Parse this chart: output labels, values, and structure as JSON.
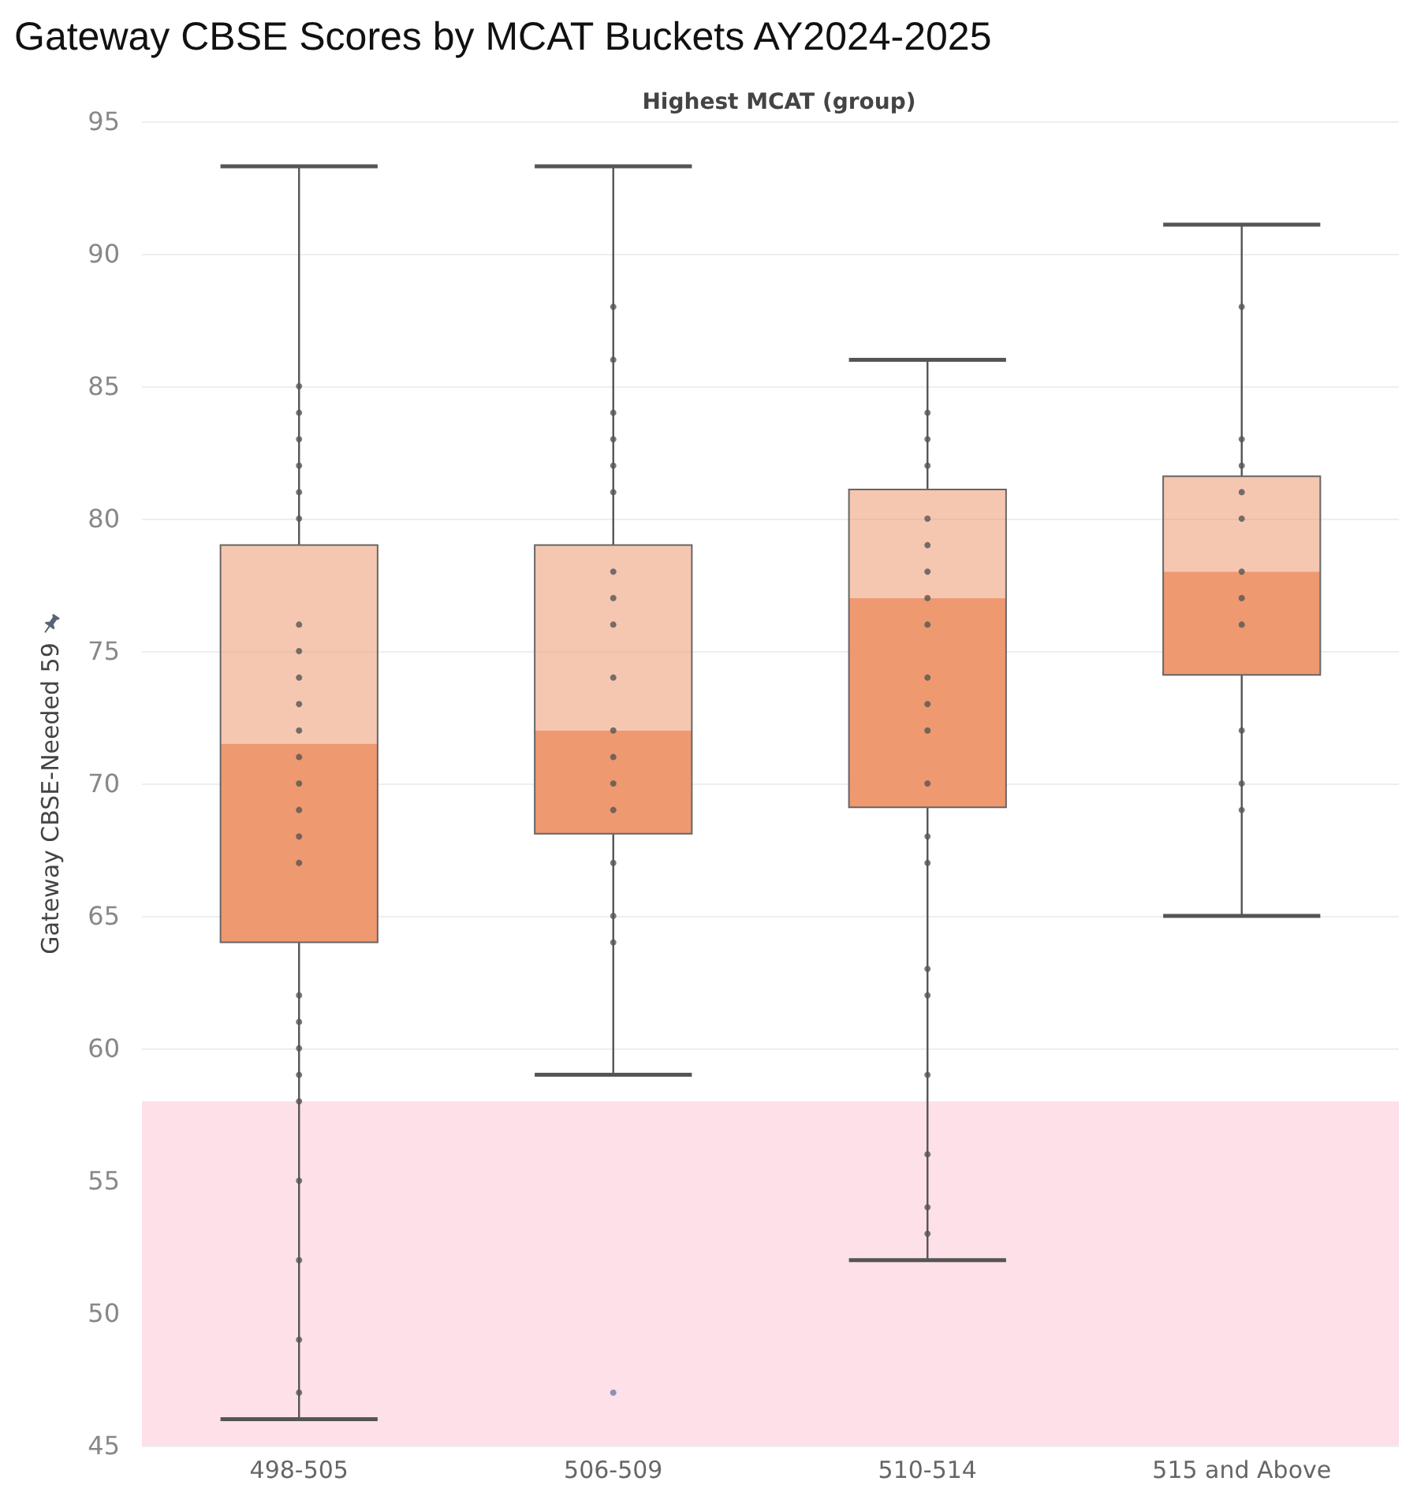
{
  "chart_data": {
    "type": "box",
    "title": "Gateway CBSE Scores by MCAT Buckets AY2024-2025",
    "xlabel": "Highest MCAT (group)",
    "ylabel": "Gateway CBSE-Needed 59",
    "categories": [
      "498-505",
      "506-509",
      "510-514",
      "515 and Above"
    ],
    "ylim": [
      45,
      95
    ],
    "yticks": [
      45,
      50,
      55,
      60,
      65,
      70,
      75,
      80,
      85,
      90,
      95
    ],
    "grid": "y",
    "bands": [
      {
        "axis": "y",
        "from": 45,
        "to": 58,
        "color": "#fde0e8"
      }
    ],
    "series": [
      {
        "color": "#ee9970",
        "boxes": [
          {
            "low": 46,
            "q1": 64,
            "median": 71.5,
            "q3": 79,
            "high": 93.3
          },
          {
            "low": 59,
            "q1": 68.1,
            "median": 72,
            "q3": 79,
            "high": 93.3,
            "outliers": [
              47
            ]
          },
          {
            "low": 52,
            "q1": 69.1,
            "median": 77,
            "q3": 81.1,
            "high": 86
          },
          {
            "low": 65,
            "q1": 74.1,
            "median": 78,
            "q3": 81.6,
            "high": 91.1
          }
        ]
      },
      {
        "type": "scatter",
        "color": "#555555",
        "marker": "circle",
        "x": [
          "498-505",
          "498-505",
          "498-505",
          "498-505",
          "498-505",
          "498-505",
          "498-505",
          "498-505",
          "498-505",
          "498-505",
          "498-505",
          "498-505",
          "498-505",
          "498-505",
          "498-505",
          "498-505",
          "498-505",
          "498-505",
          "498-505",
          "498-505",
          "498-505",
          "498-505",
          "498-505",
          "498-505",
          "498-505",
          "506-509",
          "506-509",
          "506-509",
          "506-509",
          "506-509",
          "506-509",
          "506-509",
          "506-509",
          "506-509",
          "506-509",
          "506-509",
          "506-509",
          "506-509",
          "506-509",
          "506-509",
          "506-509",
          "506-509",
          "510-514",
          "510-514",
          "510-514",
          "510-514",
          "510-514",
          "510-514",
          "510-514",
          "510-514",
          "510-514",
          "510-514",
          "510-514",
          "510-514",
          "510-514",
          "510-514",
          "510-514",
          "510-514",
          "510-514",
          "510-514",
          "510-514",
          "510-514",
          "515 and Above",
          "515 and Above",
          "515 and Above",
          "515 and Above",
          "515 and Above",
          "515 and Above",
          "515 and Above",
          "515 and Above",
          "515 and Above",
          "515 and Above",
          "515 and Above"
        ],
        "values": [
          85,
          84,
          83,
          82,
          81,
          80,
          76,
          75,
          74,
          73,
          72,
          71,
          70,
          69,
          68,
          67,
          62,
          61,
          60,
          59,
          58,
          55,
          52,
          49,
          47,
          88,
          86,
          84,
          83,
          82,
          81,
          78,
          77,
          76,
          74,
          72,
          71,
          70,
          69,
          67,
          65,
          64,
          84,
          83,
          82,
          80,
          79,
          78,
          77,
          76,
          74,
          73,
          72,
          70,
          68,
          67,
          63,
          62,
          59,
          56,
          54,
          53,
          88,
          83,
          82,
          81,
          80,
          78,
          77,
          76,
          72,
          70,
          69
        ]
      }
    ]
  }
}
